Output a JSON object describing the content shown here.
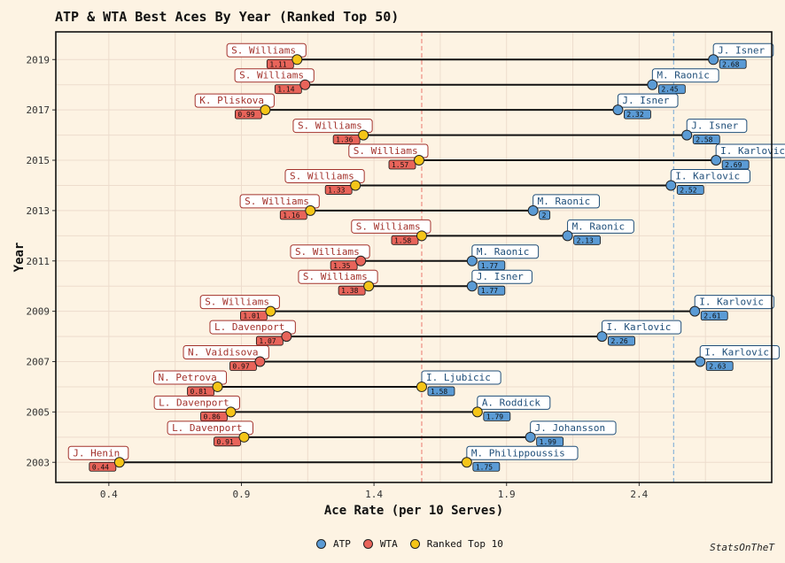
{
  "title": "ATP & WTA Best Aces By Year (Ranked Top 50)",
  "caption": "StatsOnTheT",
  "legend": [
    {
      "label": "ATP",
      "color": "#5b9bd5"
    },
    {
      "label": "WTA",
      "color": "#e8645a"
    },
    {
      "label": "Ranked Top 10",
      "color": "#f5c518"
    }
  ],
  "chart_data": {
    "type": "scatter",
    "title": "ATP & WTA Best Aces By Year (Ranked Top 50)",
    "xlabel": "Ace Rate (per 10 Serves)",
    "ylabel": "Year",
    "xlim": [
      0.2,
      2.9
    ],
    "ylim": [
      2002.2,
      2020.1
    ],
    "xticks": [
      "0.4",
      "0.9",
      "1.4",
      "1.9",
      "2.4"
    ],
    "yticks": [
      "2003",
      "2005",
      "2007",
      "2009",
      "2011",
      "2013",
      "2015",
      "2017",
      "2019"
    ],
    "ref_lines": [
      {
        "x": 1.58,
        "color": "#e8645a"
      },
      {
        "x": 2.53,
        "color": "#5b9bd5"
      }
    ],
    "rows": [
      {
        "year": 2019,
        "wta_player": "S. Williams",
        "wta_rate": 1.11,
        "wta_top10": true,
        "atp_player": "J. Isner",
        "atp_rate": 2.68,
        "atp_top10": false
      },
      {
        "year": 2018,
        "wta_player": "S. Williams",
        "wta_rate": 1.14,
        "wta_top10": false,
        "atp_player": "M. Raonic",
        "atp_rate": 2.45,
        "atp_top10": false
      },
      {
        "year": 2017,
        "wta_player": "K. Pliskova",
        "wta_rate": 0.99,
        "wta_top10": true,
        "atp_player": "J. Isner",
        "atp_rate": 2.32,
        "atp_top10": false
      },
      {
        "year": 2016,
        "wta_player": "S. Williams",
        "wta_rate": 1.36,
        "wta_top10": true,
        "atp_player": "J. Isner",
        "atp_rate": 2.58,
        "atp_top10": false
      },
      {
        "year": 2015,
        "wta_player": "S. Williams",
        "wta_rate": 1.57,
        "wta_top10": true,
        "atp_player": "I. Karlovic",
        "atp_rate": 2.69,
        "atp_top10": false
      },
      {
        "year": 2014,
        "wta_player": "S. Williams",
        "wta_rate": 1.33,
        "wta_top10": true,
        "atp_player": "I. Karlovic",
        "atp_rate": 2.52,
        "atp_top10": false
      },
      {
        "year": 2013,
        "wta_player": "S. Williams",
        "wta_rate": 1.16,
        "wta_top10": true,
        "atp_player": "M. Raonic",
        "atp_rate": 2,
        "atp_top10": false
      },
      {
        "year": 2012,
        "wta_player": "S. Williams",
        "wta_rate": 1.58,
        "wta_top10": true,
        "atp_player": "M. Raonic",
        "atp_rate": 2.13,
        "atp_top10": false
      },
      {
        "year": 2011,
        "wta_player": "S. Williams",
        "wta_rate": 1.35,
        "wta_top10": false,
        "atp_player": "M. Raonic",
        "atp_rate": 1.77,
        "atp_top10": false
      },
      {
        "year": 2010,
        "wta_player": "S. Williams",
        "wta_rate": 1.38,
        "wta_top10": true,
        "atp_player": "J. Isner",
        "atp_rate": 1.77,
        "atp_top10": false
      },
      {
        "year": 2009,
        "wta_player": "S. Williams",
        "wta_rate": 1.01,
        "wta_top10": true,
        "atp_player": "I. Karlovic",
        "atp_rate": 2.61,
        "atp_top10": false
      },
      {
        "year": 2008,
        "wta_player": "L. Davenport",
        "wta_rate": 1.07,
        "wta_top10": false,
        "atp_player": "I. Karlovic",
        "atp_rate": 2.26,
        "atp_top10": false
      },
      {
        "year": 2007,
        "wta_player": "N. Vaidisova",
        "wta_rate": 0.97,
        "wta_top10": false,
        "atp_player": "I. Karlovic",
        "atp_rate": 2.63,
        "atp_top10": false
      },
      {
        "year": 2006,
        "wta_player": "N. Petrova",
        "wta_rate": 0.81,
        "wta_top10": true,
        "atp_player": "I. Ljubicic",
        "atp_rate": 1.58,
        "atp_top10": true
      },
      {
        "year": 2005,
        "wta_player": "L. Davenport",
        "wta_rate": 0.86,
        "wta_top10": true,
        "atp_player": "A. Roddick",
        "atp_rate": 1.79,
        "atp_top10": true
      },
      {
        "year": 2004,
        "wta_player": "L. Davenport",
        "wta_rate": 0.91,
        "wta_top10": true,
        "atp_player": "J. Johansson",
        "atp_rate": 1.99,
        "atp_top10": false
      },
      {
        "year": 2003,
        "wta_player": "J. Henin",
        "wta_rate": 0.44,
        "wta_top10": true,
        "atp_player": "M. Philippoussis",
        "atp_rate": 1.75,
        "atp_top10": true
      }
    ]
  }
}
